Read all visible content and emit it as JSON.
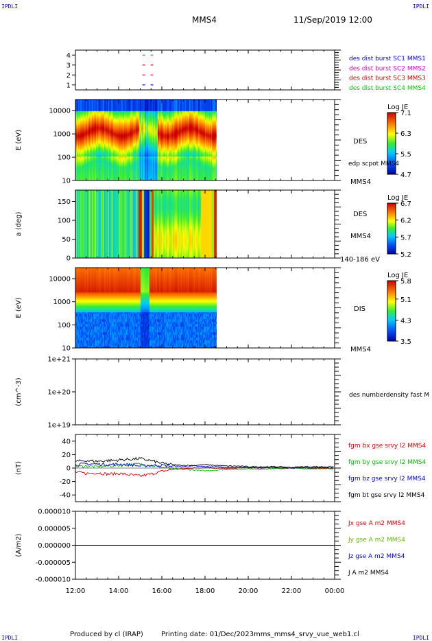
{
  "header": {
    "corner_left": "IPDLI",
    "corner_right": "IPDLI",
    "spacecraft": "MMS4",
    "datetime": "11/Sep/2019 12:00",
    "footer_left": "IPDLI",
    "footer_right": "IPDLI"
  },
  "footer": {
    "produced_by": "Produced by cl (IRAP)",
    "printing_date": "Printing date: 01/Dec/2023",
    "filename": "mms_mms4_srvy_vue_web1.cl"
  },
  "chart_data": [
    {
      "type": "line",
      "panel": "burst-availability",
      "yticks": [
        "1",
        "2",
        "3",
        "4"
      ],
      "ylim": [
        0.5,
        4.5
      ],
      "series": [
        {
          "name": "des dist burst SC1 MMS1",
          "color": "#0000dd",
          "y": 1
        },
        {
          "name": "des dist burst SC2 MMS2",
          "color": "#dd00dd",
          "y": 2
        },
        {
          "name": "des dist burst SC3 MMS3",
          "color": "#dd0000",
          "y": 3
        },
        {
          "name": "des dist burst SC4 MMS4",
          "color": "#00cc00",
          "y": 4
        }
      ],
      "burst_interval_hours": [
        15.1,
        15.6
      ]
    },
    {
      "type": "heatmap",
      "panel": "des-energy",
      "ylabel": "E (eV)",
      "yscale": "log",
      "yticks": [
        "10",
        "100",
        "1000",
        "10000"
      ],
      "ylim": [
        10,
        30000
      ],
      "label": "DES",
      "overlay_label": "edp scpot MMS4",
      "colorbar": {
        "title": "Log JE",
        "ticks": [
          "4.7",
          "5.5",
          "6.3",
          "7.1"
        ],
        "range": [
          4.7,
          7.1
        ]
      },
      "data_end_hours": 18.55
    },
    {
      "type": "heatmap",
      "panel": "des-pitch",
      "ylabel": "a (deg)",
      "yticks": [
        "0",
        "50",
        "100",
        "150"
      ],
      "ylim": [
        0,
        180
      ],
      "label": "DES",
      "sublabel": "MMS4",
      "energy_range": "140-186 eV",
      "colorbar": {
        "title": "Log JE",
        "ticks": [
          "5.2",
          "5.7",
          "6.2",
          "6.7"
        ],
        "range": [
          5.2,
          6.7
        ]
      },
      "data_end_hours": 18.55
    },
    {
      "type": "heatmap",
      "panel": "dis-energy",
      "ylabel": "E (eV)",
      "yscale": "log",
      "yticks": [
        "10",
        "100",
        "1000",
        "10000"
      ],
      "ylim": [
        10,
        30000
      ],
      "label": "DIS",
      "panel_above_label": "MMS4",
      "colorbar": {
        "title": "Log JE",
        "ticks": [
          "3.5",
          "4.3",
          "5.1",
          "5.8"
        ],
        "range": [
          3.5,
          5.8
        ]
      },
      "data_end_hours": 18.55
    },
    {
      "type": "line",
      "panel": "density",
      "ylabel": "(cm^-3)",
      "yscale": "log",
      "yticks": [
        "1e+19",
        "1e+20",
        "1e+21"
      ],
      "label": "des numberdensity fast M",
      "sublabel": "MMS4",
      "series": []
    },
    {
      "type": "line",
      "panel": "fgm",
      "ylabel": "(nT)",
      "yticks": [
        "-40",
        "-20",
        "0",
        "20",
        "40"
      ],
      "ylim": [
        -50,
        50
      ],
      "x": [
        12.0,
        12.5,
        13.0,
        13.5,
        14.0,
        14.5,
        15.0,
        15.5,
        16.0,
        16.5,
        17.0,
        17.5,
        18.0,
        18.5,
        19.0,
        19.5,
        20.0,
        20.5,
        21.0,
        21.5,
        22.0,
        22.5,
        23.0,
        23.5,
        24.0
      ],
      "series": [
        {
          "name": "fgm bx gse srvy l2 MMS4",
          "color": "#dd0000",
          "values": [
            -6,
            -8,
            -7,
            -9,
            -8,
            -10,
            -12,
            -9,
            -5,
            -2,
            -1,
            0,
            1,
            0,
            -1,
            0,
            1,
            0,
            1,
            0,
            0,
            1,
            0,
            -1,
            0
          ]
        },
        {
          "name": "fgm by gse srvy l2 MMS4",
          "color": "#00bb00",
          "values": [
            2,
            3,
            2,
            3,
            4,
            5,
            6,
            4,
            1,
            -1,
            -2,
            -3,
            -4,
            -3,
            -2,
            -2,
            -1,
            -2,
            -1,
            -1,
            0,
            -1,
            -1,
            0,
            -1
          ]
        },
        {
          "name": "fgm bz gse srvy l2 MMS4",
          "color": "#0000dd",
          "values": [
            5,
            6,
            6,
            5,
            6,
            5,
            3,
            4,
            4,
            3,
            2,
            3,
            2,
            2,
            1,
            1,
            1,
            0,
            1,
            0,
            0,
            1,
            0,
            1,
            0
          ]
        },
        {
          "name": "fgm bt gse srvy l2 MMS4",
          "color": "#000000",
          "values": [
            10,
            11,
            10,
            11,
            12,
            13,
            14,
            11,
            7,
            5,
            4,
            4,
            5,
            4,
            3,
            3,
            2,
            2,
            2,
            2,
            1,
            2,
            2,
            2,
            2
          ]
        }
      ]
    },
    {
      "type": "line",
      "panel": "current",
      "ylabel": "(A/m2)",
      "yticks": [
        "-0.000010",
        "-0.000005",
        "0.000000",
        "0.000005",
        "0.000010"
      ],
      "ylim": [
        -1e-05,
        1e-05
      ],
      "series": [
        {
          "name": "Jx gse A m2 MMS4",
          "color": "#dd0000"
        },
        {
          "name": "Jy gse A m2 MMS4",
          "color": "#66bb00"
        },
        {
          "name": "Jz gse A m2 MMS4",
          "color": "#0000dd"
        },
        {
          "name": "J A m2 MMS4",
          "color": "#000000"
        }
      ]
    }
  ],
  "x_axis": {
    "ticks": [
      "12:00",
      "14:00",
      "16:00",
      "18:00",
      "20:00",
      "22:00",
      "00:00"
    ],
    "range_hours": [
      12,
      24
    ]
  }
}
